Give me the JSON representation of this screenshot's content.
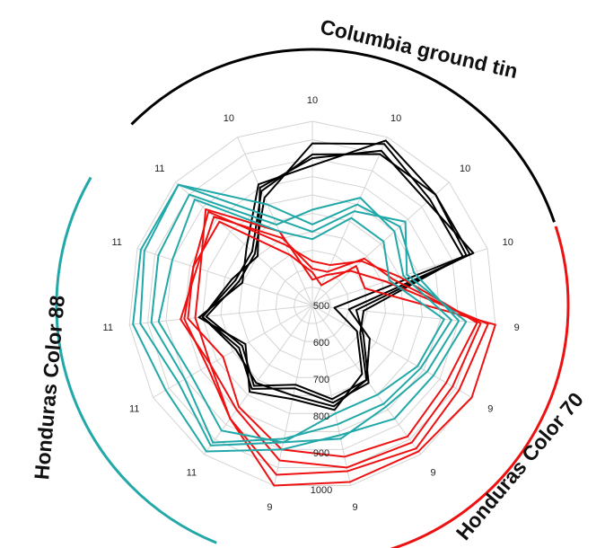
{
  "chart_data": {
    "type": "radar",
    "title": "",
    "radial_axis": {
      "range": [
        500,
        1000
      ],
      "tick_labels": [
        "500",
        "600",
        "700",
        "800",
        "900",
        "1000"
      ]
    },
    "spoke_labels": [
      "10",
      "10",
      "10",
      "10",
      "9",
      "9",
      "9",
      "9",
      "9",
      "11",
      "11",
      "11",
      "11",
      "11",
      "10"
    ],
    "grid": true,
    "groups": [
      {
        "label": "Columbia ground tin",
        "color": "#000000"
      },
      {
        "label": "Honduras Color 70",
        "color": "#ee1111"
      },
      {
        "label": "Honduras Color 88",
        "color": "#22a8a8"
      }
    ],
    "series": [
      {
        "group": 0,
        "color": "#000000",
        "values": [
          940,
          980,
          930,
          930,
          640,
          650,
          750,
          760,
          720,
          770,
          720,
          790,
          710,
          710,
          820
        ]
      },
      {
        "group": 0,
        "color": "#000000",
        "values": [
          910,
          950,
          950,
          950,
          620,
          660,
          760,
          770,
          730,
          780,
          730,
          800,
          720,
          720,
          840
        ]
      },
      {
        "group": 0,
        "color": "#000000",
        "values": [
          900,
          960,
          920,
          960,
          600,
          680,
          750,
          780,
          750,
          760,
          740,
          800,
          730,
          700,
          850
        ]
      },
      {
        "group": 0,
        "color": "#000000",
        "values": [
          880,
          990,
          950,
          940,
          560,
          640,
          730,
          790,
          760,
          790,
          710,
          810,
          700,
          740,
          860
        ]
      },
      {
        "group": 1,
        "color": "#ee1111",
        "values": [
          590,
          560,
          660,
          650,
          1000,
          1000,
          990,
          990,
          1000,
          880,
          830,
          850,
          840,
          840,
          650
        ]
      },
      {
        "group": 1,
        "color": "#ee1111",
        "values": [
          570,
          590,
          640,
          710,
          980,
          960,
          980,
          960,
          970,
          880,
          820,
          820,
          820,
          890,
          720
        ]
      },
      {
        "group": 1,
        "color": "#ee1111",
        "values": [
          600,
          600,
          690,
          730,
          960,
          940,
          960,
          950,
          930,
          850,
          820,
          860,
          830,
          860,
          700
        ]
      },
      {
        "group": 1,
        "color": "#ee1111",
        "values": [
          620,
          620,
          680,
          750,
          950,
          920,
          940,
          920,
          900,
          840,
          780,
          840,
          840,
          880,
          680
        ]
      },
      {
        "group": 2,
        "color": "#22a8a8",
        "values": [
          700,
          780,
          840,
          770,
          920,
          880,
          880,
          860,
          900,
          990,
          960,
          990,
          990,
          990,
          760
        ]
      },
      {
        "group": 2,
        "color": "#22a8a8",
        "values": [
          720,
          800,
          820,
          790,
          900,
          860,
          840,
          870,
          880,
          970,
          920,
          970,
          980,
          990,
          800
        ]
      },
      {
        "group": 2,
        "color": "#22a8a8",
        "values": [
          760,
          820,
          800,
          760,
          880,
          840,
          830,
          830,
          870,
          960,
          900,
          940,
          940,
          950,
          740
        ]
      },
      {
        "group": 2,
        "color": "#22a8a8",
        "values": [
          680,
          760,
          760,
          720,
          860,
          830,
          800,
          800,
          880,
          920,
          880,
          920,
          900,
          930,
          720
        ]
      }
    ]
  }
}
